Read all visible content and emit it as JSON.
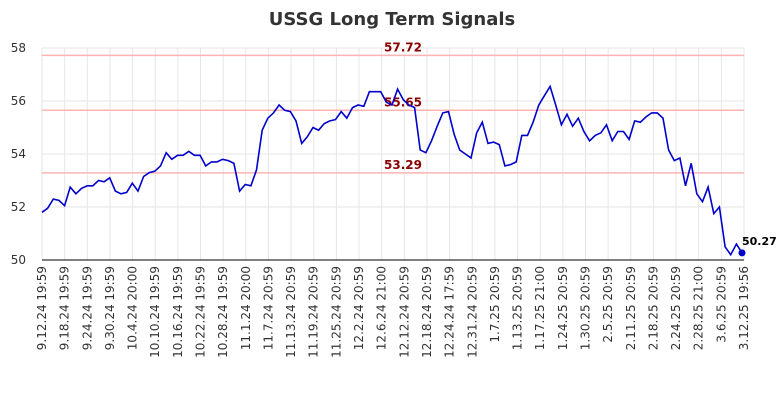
{
  "chart_data": {
    "type": "line",
    "title": "USSG Long Term Signals",
    "xlabel": "",
    "ylabel": "",
    "ylim": [
      50,
      58
    ],
    "yticks": [
      50,
      52,
      54,
      56,
      58
    ],
    "grid": true,
    "x_tick_labels": [
      "9.12.24 19:59",
      "9.18.24 19:59",
      "9.24.24 19:59",
      "9.30.24 19:59",
      "10.4.24 20:00",
      "10.10.24 19:59",
      "10.16.24 19:59",
      "10.22.24 19:59",
      "10.28.24 19:59",
      "11.1.24 20:00",
      "11.7.24 20:59",
      "11.13.24 20:59",
      "11.19.24 20:59",
      "11.25.24 20:59",
      "12.2.24 20:59",
      "12.6.24 21:00",
      "12.12.24 20:59",
      "12.18.24 20:59",
      "12.24.24 17:59",
      "12.31.24 20:59",
      "1.7.25 20:59",
      "1.13.25 20:59",
      "1.17.25 21:00",
      "1.24.25 20:59",
      "1.30.25 20:59",
      "2.5.25 20:59",
      "2.11.25 20:59",
      "2.18.25 20:59",
      "2.24.25 20:59",
      "2.28.25 21:00",
      "3.6.25 20:59",
      "3.12.25 19:56"
    ],
    "reference_lines": [
      {
        "value": 57.72,
        "label": "57.72",
        "color": "#ffb3b3"
      },
      {
        "value": 55.65,
        "label": "55.65",
        "color": "#ffb3b3"
      },
      {
        "value": 53.29,
        "label": "53.29",
        "color": "#ffb3b3"
      }
    ],
    "series": [
      {
        "color": "#0000cc",
        "values": [
          51.8,
          51.95,
          52.3,
          52.25,
          52.05,
          52.75,
          52.5,
          52.7,
          52.8,
          52.8,
          53.0,
          52.95,
          53.1,
          52.6,
          52.5,
          52.55,
          52.9,
          52.6,
          53.15,
          53.3,
          53.35,
          53.55,
          54.05,
          53.8,
          53.95,
          53.95,
          54.1,
          53.95,
          53.95,
          53.55,
          53.7,
          53.7,
          53.8,
          53.75,
          53.65,
          52.6,
          52.85,
          52.8,
          53.4,
          54.9,
          55.35,
          55.55,
          55.85,
          55.65,
          55.6,
          55.25,
          54.4,
          54.65,
          55.0,
          54.9,
          55.15,
          55.25,
          55.3,
          55.6,
          55.35,
          55.75,
          55.85,
          55.8,
          56.35,
          56.35,
          56.35,
          55.95,
          55.85,
          56.45,
          56.05,
          55.85,
          55.75,
          54.15,
          54.05,
          54.5,
          55.05,
          55.55,
          55.6,
          54.75,
          54.15,
          54.0,
          53.85,
          54.8,
          55.2,
          54.4,
          54.45,
          54.35,
          53.55,
          53.6,
          53.7,
          54.7,
          54.7,
          55.2,
          55.85,
          56.2,
          56.55,
          55.85,
          55.1,
          55.5,
          55.05,
          55.35,
          54.85,
          54.5,
          54.7,
          54.8,
          55.1,
          54.5,
          54.85,
          54.85,
          54.55,
          55.25,
          55.2,
          55.4,
          55.55,
          55.55,
          55.35,
          54.15,
          53.75,
          53.85,
          52.8,
          53.65,
          52.5,
          52.2,
          52.75,
          51.75,
          52.0,
          50.5,
          50.2,
          50.6,
          50.27
        ]
      }
    ],
    "last_value": 50.27,
    "last_value_label": "50.27"
  }
}
